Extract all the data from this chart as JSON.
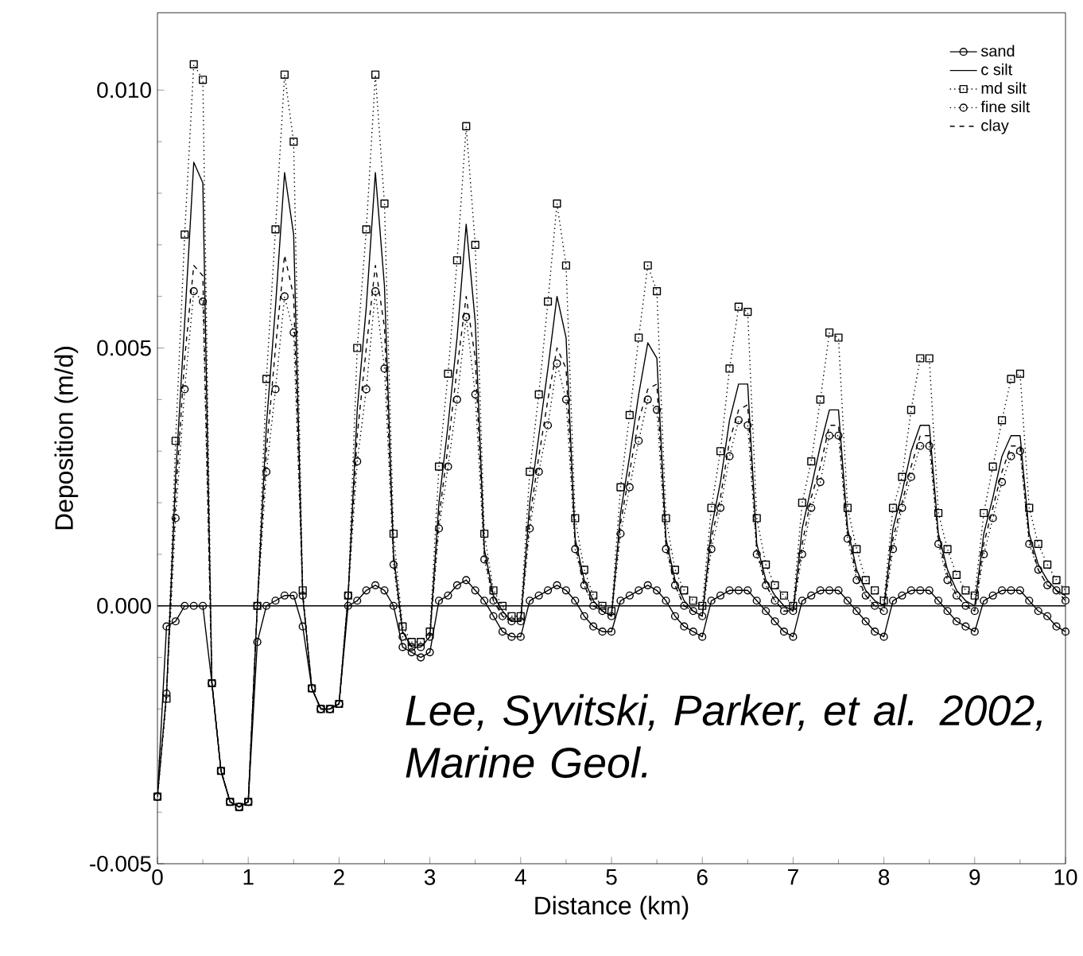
{
  "chart_data": {
    "type": "line",
    "xlabel": "Distance (km)",
    "ylabel": "Deposition (m/d)",
    "annotations": [
      "Lee, Syvitski, Parker, et al. 2002, Marine Geol."
    ],
    "xlim": [
      0,
      10
    ],
    "xticks": [
      0,
      1,
      2,
      3,
      4,
      5,
      6,
      7,
      8,
      9,
      10
    ],
    "ylim": [
      -0.005,
      0.0115
    ],
    "yticks": [
      -0.005,
      {
        "value": 0,
        "label": "0.000"
      },
      {
        "value": 0.005,
        "label": "0.005"
      },
      {
        "value": 0.01,
        "label": "0.010"
      }
    ],
    "legend": "top right",
    "grid": false,
    "ref_lines": [
      {
        "axis": "y",
        "value": 0,
        "label": null,
        "color": "#000000"
      }
    ],
    "x": [
      0,
      0.1,
      0.2,
      0.3,
      0.4,
      0.5,
      0.6,
      0.7,
      0.8,
      0.9,
      1,
      1.1,
      1.2,
      1.3,
      1.4,
      1.5,
      1.6,
      1.7,
      1.8,
      1.9,
      2,
      2.1,
      2.2,
      2.3,
      2.4,
      2.5,
      2.6,
      2.7,
      2.8,
      2.9,
      3,
      3.1,
      3.2,
      3.3,
      3.4,
      3.5,
      3.6,
      3.7,
      3.8,
      3.9,
      4,
      4.1,
      4.2,
      4.3,
      4.4,
      4.5,
      4.6,
      4.7,
      4.8,
      4.9,
      5,
      5.1,
      5.2,
      5.3,
      5.4,
      5.5,
      5.6,
      5.7,
      5.8,
      5.9,
      6,
      6.1,
      6.2,
      6.3,
      6.4,
      6.5,
      6.6,
      6.7,
      6.8,
      6.9,
      7,
      7.1,
      7.2,
      7.3,
      7.4,
      7.5,
      7.6,
      7.7,
      7.8,
      7.9,
      8,
      8.1,
      8.2,
      8.3,
      8.4,
      8.5,
      8.6,
      8.7,
      8.8,
      8.9,
      9,
      9.1,
      9.2,
      9.3,
      9.4,
      9.5,
      9.6,
      9.7,
      9.8,
      9.9,
      10
    ],
    "series": [
      {
        "name": "sand",
        "color": "#000000",
        "marker": "circle",
        "line_style": "solid",
        "values": [
          -0.0037,
          -0.0004,
          -0.0003,
          0.0,
          0.0,
          0.0,
          -0.0015,
          -0.0032,
          -0.0038,
          -0.0039,
          -0.0038,
          -0.0007,
          0.0,
          0.0001,
          0.0002,
          0.0002,
          -0.0004,
          -0.0016,
          -0.002,
          -0.002,
          -0.0019,
          0.0,
          0.0001,
          0.0003,
          0.0004,
          0.0003,
          0.0,
          -0.0008,
          -0.0009,
          -0.001,
          -0.0009,
          0.0001,
          0.0002,
          0.0004,
          0.0005,
          0.0003,
          0.0001,
          -0.0002,
          -0.0005,
          -0.0006,
          -0.0006,
          0.0001,
          0.0002,
          0.0003,
          0.0004,
          0.0003,
          0.0001,
          -0.0002,
          -0.0004,
          -0.0005,
          -0.0005,
          0.0001,
          0.0002,
          0.0003,
          0.0004,
          0.0003,
          0.0001,
          -0.0002,
          -0.0004,
          -0.0005,
          -0.0006,
          0.0001,
          0.0002,
          0.0003,
          0.0003,
          0.0003,
          0.0001,
          -0.0001,
          -0.0003,
          -0.0005,
          -0.0006,
          0.0001,
          0.0002,
          0.0003,
          0.0003,
          0.0003,
          0.0001,
          -0.0001,
          -0.0003,
          -0.0005,
          -0.0006,
          0.0001,
          0.0002,
          0.0003,
          0.0003,
          0.0003,
          0.0001,
          -0.0001,
          -0.0003,
          -0.0004,
          -0.0005,
          0.0001,
          0.0002,
          0.0003,
          0.0003,
          0.0003,
          0.0001,
          -0.0001,
          -0.0002,
          -0.0004,
          -0.0005
        ]
      },
      {
        "name": "c silt",
        "color": "#000000",
        "marker": "none",
        "line_style": "solid",
        "values": [
          -0.0037,
          -0.0017,
          0.0025,
          0.0055,
          0.0086,
          0.0082,
          -0.0015,
          -0.0032,
          -0.0038,
          -0.0039,
          -0.0038,
          0.0,
          0.0035,
          0.0058,
          0.0084,
          0.0072,
          0.0002,
          -0.0016,
          -0.002,
          -0.002,
          -0.0019,
          0.0002,
          0.0038,
          0.0058,
          0.0084,
          0.0062,
          0.001,
          -0.0005,
          -0.0008,
          -0.0008,
          -0.0006,
          0.002,
          0.0035,
          0.0052,
          0.0074,
          0.0055,
          0.0011,
          0.0002,
          -0.0001,
          -0.0003,
          -0.0003,
          0.002,
          0.0033,
          0.0046,
          0.006,
          0.0052,
          0.0013,
          0.0005,
          0.0001,
          -0.0001,
          -0.0002,
          0.0018,
          0.0029,
          0.0041,
          0.0051,
          0.0048,
          0.0013,
          0.0005,
          0.0001,
          -0.0001,
          -0.0002,
          0.0015,
          0.0024,
          0.0036,
          0.0043,
          0.0043,
          0.0012,
          0.0005,
          0.0002,
          0.0,
          -0.0001,
          0.0015,
          0.0023,
          0.0031,
          0.0038,
          0.0038,
          0.0015,
          0.0007,
          0.0003,
          0.0001,
          0.0,
          0.0015,
          0.0022,
          0.003,
          0.0035,
          0.0035,
          0.0014,
          0.0007,
          0.0003,
          0.0001,
          0.0,
          0.0014,
          0.0021,
          0.0029,
          0.0033,
          0.0033,
          0.0014,
          0.0008,
          0.0005,
          0.0003,
          0.0002
        ]
      },
      {
        "name": "md silt",
        "color": "#000000",
        "marker": "square",
        "line_style": "dotted",
        "values": [
          -0.0037,
          -0.0018,
          0.0032,
          0.0072,
          0.0105,
          0.0102,
          -0.0015,
          -0.0032,
          -0.0038,
          -0.0039,
          -0.0038,
          0.0,
          0.0044,
          0.0073,
          0.0103,
          0.009,
          0.0003,
          -0.0016,
          -0.002,
          -0.002,
          -0.0019,
          0.0002,
          0.005,
          0.0073,
          0.0103,
          0.0078,
          0.0014,
          -0.0004,
          -0.0007,
          -0.0007,
          -0.0005,
          0.0027,
          0.0045,
          0.0067,
          0.0093,
          0.007,
          0.0014,
          0.0003,
          0.0,
          -0.0002,
          -0.0002,
          0.0026,
          0.0041,
          0.0059,
          0.0078,
          0.0066,
          0.0017,
          0.0007,
          0.0002,
          0.0,
          -0.0001,
          0.0023,
          0.0037,
          0.0052,
          0.0066,
          0.0061,
          0.0017,
          0.0007,
          0.0003,
          0.0001,
          0.0,
          0.0019,
          0.003,
          0.0046,
          0.0058,
          0.0057,
          0.0017,
          0.0008,
          0.0004,
          0.0002,
          0.0,
          0.002,
          0.0028,
          0.004,
          0.0053,
          0.0052,
          0.0019,
          0.0011,
          0.0005,
          0.0003,
          0.0001,
          0.0019,
          0.0025,
          0.0038,
          0.0048,
          0.0048,
          0.0018,
          0.0011,
          0.0006,
          0.0003,
          0.0002,
          0.0018,
          0.0027,
          0.0036,
          0.0044,
          0.0045,
          0.0019,
          0.0012,
          0.0008,
          0.0005,
          0.0003
        ]
      },
      {
        "name": "fine silt",
        "color": "#000000",
        "marker": "circle",
        "line_style": "dotted",
        "values": [
          -0.0037,
          -0.0017,
          0.0017,
          0.0042,
          0.0061,
          0.0059,
          -0.0015,
          -0.0032,
          -0.0038,
          -0.0039,
          -0.0038,
          0.0,
          0.0026,
          0.0042,
          0.006,
          0.0053,
          0.0002,
          -0.0016,
          -0.002,
          -0.002,
          -0.0019,
          0.0002,
          0.0028,
          0.0042,
          0.0061,
          0.0046,
          0.0008,
          -0.0006,
          -0.0008,
          -0.0008,
          -0.0006,
          0.0015,
          0.0027,
          0.004,
          0.0056,
          0.0041,
          0.0009,
          0.0001,
          -0.0002,
          -0.0003,
          -0.0003,
          0.0015,
          0.0026,
          0.0035,
          0.0047,
          0.004,
          0.0011,
          0.0004,
          0.0,
          -0.0001,
          -0.0002,
          0.0014,
          0.0023,
          0.0032,
          0.004,
          0.0038,
          0.0011,
          0.0004,
          0.0,
          -0.0001,
          -0.0002,
          0.0011,
          0.0019,
          0.0029,
          0.0036,
          0.0035,
          0.001,
          0.0004,
          0.0001,
          -0.0001,
          -0.0001,
          0.001,
          0.0019,
          0.0024,
          0.0033,
          0.0033,
          0.0013,
          0.0005,
          0.0002,
          0.0,
          -0.0001,
          0.0011,
          0.0019,
          0.0025,
          0.0031,
          0.0031,
          0.0012,
          0.0005,
          0.0002,
          0.0,
          -0.0001,
          0.001,
          0.0017,
          0.0024,
          0.0029,
          0.003,
          0.0012,
          0.0007,
          0.0004,
          0.0003,
          0.0001
        ]
      },
      {
        "name": "clay",
        "color": "#000000",
        "marker": "none",
        "line_style": "dashed",
        "values": [
          -0.0037,
          -0.0017,
          0.0021,
          0.0048,
          0.0066,
          0.0064,
          -0.0015,
          -0.0032,
          -0.0038,
          -0.0039,
          -0.0038,
          0.0,
          0.003,
          0.005,
          0.0068,
          0.006,
          0.0002,
          -0.0016,
          -0.002,
          -0.002,
          -0.0019,
          0.0002,
          0.0033,
          0.005,
          0.0066,
          0.0054,
          0.0009,
          -0.0005,
          -0.0008,
          -0.0008,
          -0.0006,
          0.0017,
          0.0031,
          0.0046,
          0.006,
          0.0048,
          0.001,
          0.0001,
          -0.0002,
          -0.0003,
          -0.0003,
          0.0017,
          0.0029,
          0.004,
          0.005,
          0.0046,
          0.0012,
          0.0004,
          0.0,
          -0.0001,
          -0.0002,
          0.0016,
          0.0026,
          0.0036,
          0.0042,
          0.0043,
          0.0012,
          0.0004,
          0.0,
          -0.0001,
          -0.0002,
          0.0013,
          0.0021,
          0.0032,
          0.0038,
          0.0039,
          0.0011,
          0.0004,
          0.0001,
          -0.0001,
          -0.0001,
          0.0012,
          0.0021,
          0.0027,
          0.0035,
          0.0035,
          0.0014,
          0.0006,
          0.0002,
          0.0,
          -0.0001,
          0.0013,
          0.002,
          0.0027,
          0.0033,
          0.0033,
          0.0013,
          0.0006,
          0.0002,
          0.0,
          -0.0001,
          0.0012,
          0.0019,
          0.0026,
          0.0031,
          0.0031,
          0.0013,
          0.0007,
          0.0004,
          0.0003,
          0.0001
        ]
      }
    ]
  }
}
